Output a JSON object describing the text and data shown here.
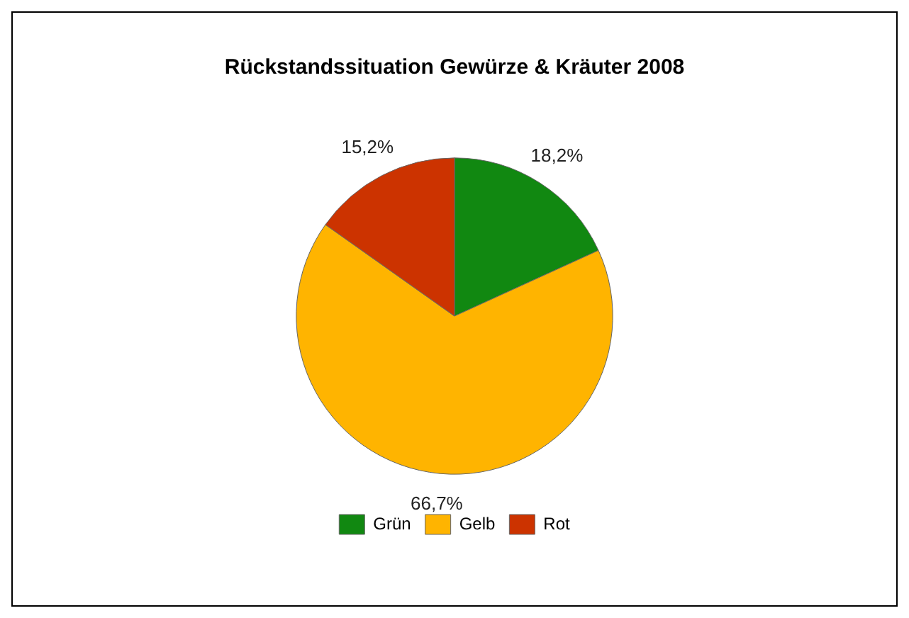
{
  "chart_data": {
    "type": "pie",
    "title": "Rückstandssituation Gewürze & Kräuter 2008",
    "categories": [
      "Grün",
      "Gelb",
      "Rot"
    ],
    "values": [
      18.2,
      66.7,
      15.2
    ],
    "colors": [
      "#118811",
      "#ffb400",
      "#cc3300"
    ],
    "value_labels": [
      "18,2%",
      "66,7%",
      "15,2%"
    ],
    "legend": "bottom"
  }
}
